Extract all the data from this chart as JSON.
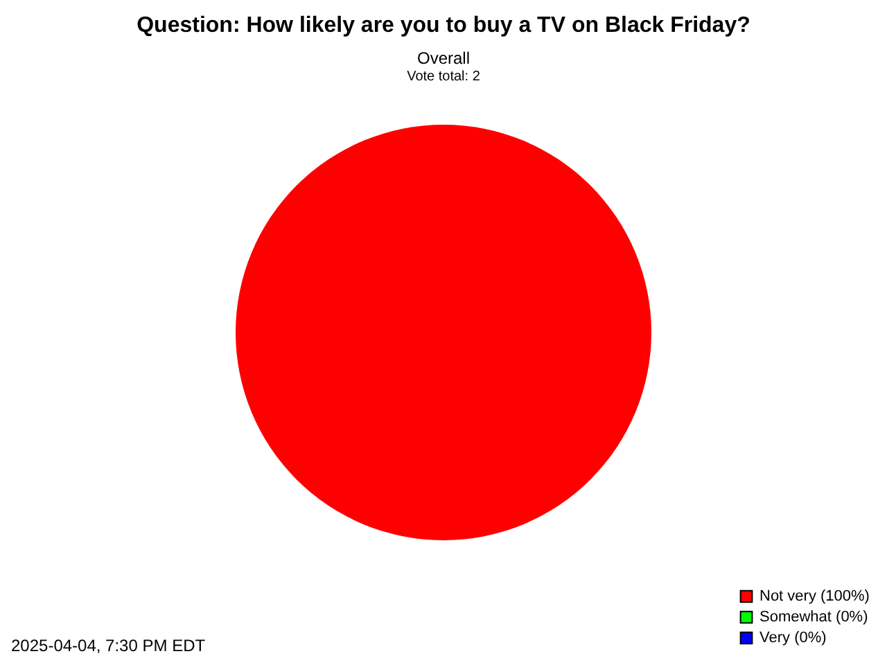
{
  "chart_data": {
    "type": "pie",
    "title": "Question: How likely are you to buy a TV on Black Friday?",
    "subtitle": "Overall",
    "annotations": [
      "Vote total: 2",
      "2025-04-04, 7:30 PM EDT"
    ],
    "categories": [
      "Not very (100%)",
      "Somewhat (0%)",
      "Very (0%)"
    ],
    "values": [
      100,
      0,
      0
    ],
    "colors": [
      "#ff0000",
      "#00ff00",
      "#0000ff"
    ],
    "legend": "bottom right"
  }
}
